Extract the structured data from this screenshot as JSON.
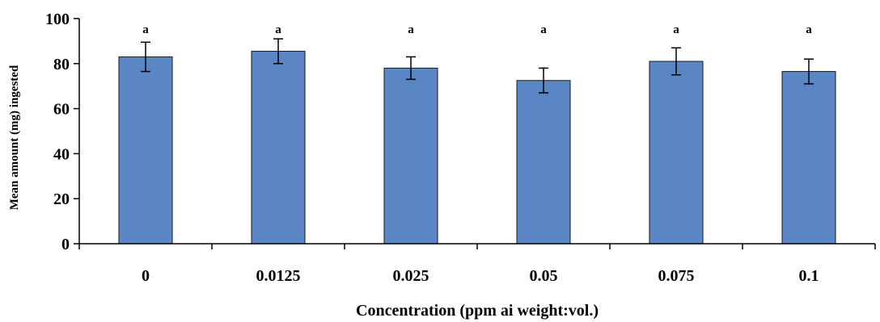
{
  "chart_data": {
    "type": "bar",
    "categories": [
      "0",
      "0.0125",
      "0.025",
      "0.05",
      "0.075",
      "0.1"
    ],
    "values": [
      83,
      85.5,
      78,
      72.5,
      81,
      76.5
    ],
    "error": [
      6.5,
      5.5,
      5,
      5.5,
      6,
      5.5
    ],
    "annotations": [
      "a",
      "a",
      "a",
      "a",
      "a",
      "a"
    ],
    "xlabel": "Concentration (ppm ai weight:vol.)",
    "ylabel": "Mean amount (mg) ingested",
    "ylim": [
      0,
      100
    ],
    "yticks": [
      "0",
      "20",
      "40",
      "60",
      "80",
      "100"
    ],
    "grid": false,
    "colors": {
      "bar_fill": "#5b86c5",
      "bar_stroke": "#1a1a1a",
      "axis": "#000000"
    }
  }
}
